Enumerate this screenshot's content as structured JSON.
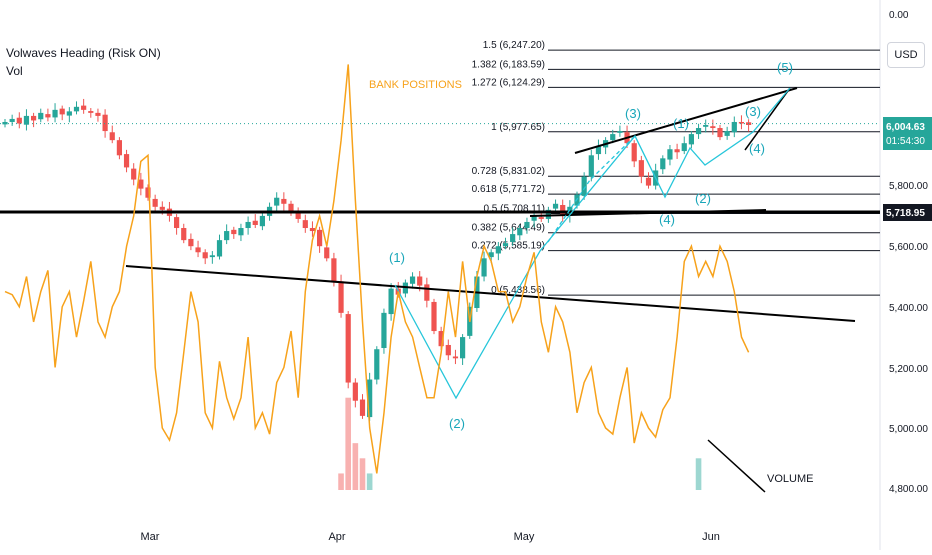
{
  "header": {
    "title": "Volwaves Heading (Risk ON)",
    "subtitle": "Vol",
    "currency": "USD"
  },
  "colors": {
    "up": "#26a69a",
    "down": "#ef5350",
    "bank": "#f7a21b",
    "wave": "#26c6da",
    "label": "#19a6b9"
  },
  "chart_data": {
    "type": "candlestick",
    "x_ticks": [
      "Mar",
      "Apr",
      "May",
      "Jun"
    ],
    "y_ticks": [
      "0.00",
      "5,800.00",
      "5,600.00",
      "5,400.00",
      "5,200.00",
      "5,000.00",
      "4,800.00"
    ],
    "price_labels": [
      {
        "text": "6,004.63",
        "sub": "01:54:30",
        "color": "#26a69a"
      },
      {
        "text": "5,718.95",
        "color": "#131722"
      }
    ],
    "fib_levels": [
      {
        "label": "1.5 (6,247.20)",
        "value": 6247.2
      },
      {
        "label": "1.382 (6,183.59)",
        "value": 6183.59
      },
      {
        "label": "1.272 (6,124.29)",
        "value": 6124.29
      },
      {
        "label": "1 (5,977.65)",
        "value": 5977.65
      },
      {
        "label": "0.728 (5,831.02)",
        "value": 5831.02
      },
      {
        "label": "0.618 (5,771.72)",
        "value": 5771.72
      },
      {
        "label": "0.5 (5,708.11)",
        "value": 5708.11
      },
      {
        "label": "0.382 (5,644.49)",
        "value": 5644.49
      },
      {
        "label": "0.272 (5,585.19)",
        "value": 5585.19
      },
      {
        "label": "0 (5,438.56)",
        "value": 5438.56
      }
    ],
    "annotations": [
      "BANK POSITIONS",
      "VOLUME"
    ],
    "wave_labels": [
      "(1)",
      "(2)",
      "(3)",
      "(1)",
      "(2)",
      "(4)",
      "(3)",
      "(4)",
      "(5)"
    ],
    "series": [
      {
        "name": "price",
        "values": [
          6010,
          6020,
          6005,
          6030,
          6015,
          6040,
          6025,
          6050,
          6035,
          6045,
          6060,
          6050,
          6040,
          6030,
          5980,
          5950,
          5900,
          5860,
          5820,
          5790,
          5760,
          5730,
          5720,
          5700,
          5660,
          5620,
          5600,
          5580,
          5560,
          5570,
          5620,
          5650,
          5640,
          5660,
          5680,
          5670,
          5700,
          5730,
          5760,
          5740,
          5710,
          5690,
          5660,
          5650,
          5600,
          5560,
          5480,
          5380,
          5150,
          5090,
          5040,
          5160,
          5260,
          5380,
          5460,
          5440,
          5480,
          5500,
          5470,
          5420,
          5320,
          5270,
          5240,
          5230,
          5300,
          5400,
          5500,
          5560,
          5580,
          5600,
          5610,
          5640,
          5660,
          5680,
          5700,
          5690,
          5720,
          5740,
          5700,
          5730,
          5770,
          5830,
          5900,
          5930,
          5950,
          5970,
          5980,
          5940,
          5880,
          5830,
          5800,
          5850,
          5890,
          5920,
          5910,
          5940,
          5970,
          5990,
          6000,
          5990,
          5960,
          5980,
          6010,
          6005,
          6000
        ]
      },
      {
        "name": "BANK POSITIONS",
        "values": [
          5.45,
          5.44,
          5.4,
          5.5,
          5.35,
          5.45,
          5.52,
          5.2,
          5.4,
          5.45,
          5.3,
          5.42,
          5.55,
          5.35,
          5.3,
          5.4,
          5.45,
          5.6,
          5.7,
          5.88,
          5.9,
          5.2,
          5.0,
          4.96,
          5.05,
          5.25,
          5.45,
          5.35,
          5.05,
          5.0,
          5.22,
          5.1,
          5.03,
          5.1,
          5.3,
          5.0,
          5.05,
          4.98,
          5.15,
          5.2,
          5.32,
          5.1,
          5.45,
          5.62,
          5.7,
          5.6,
          5.75,
          5.95,
          6.2,
          5.75,
          5.35,
          5.0,
          4.85,
          5.05,
          5.3,
          5.45,
          5.35,
          5.3,
          5.2,
          5.1,
          5.1,
          5.25,
          5.45,
          5.3,
          5.55,
          5.35,
          5.5,
          5.6,
          5.55,
          5.45,
          5.45,
          5.35,
          5.4,
          5.5,
          5.58,
          5.35,
          5.25,
          5.4,
          5.35,
          5.25,
          5.05,
          5.15,
          5.2,
          5.05,
          5.0,
          4.98,
          5.1,
          5.2,
          4.95,
          5.05,
          5.0,
          4.97,
          5.06,
          5.1,
          5.3,
          5.55,
          5.6,
          5.5,
          5.55,
          5.5,
          5.6,
          5.55,
          5.45,
          5.3,
          5.25
        ]
      },
      {
        "name": "VOLUME",
        "values": [
          4.55,
          4.45,
          4.5,
          4.4,
          4.55,
          4.45,
          4.5,
          4.4,
          4.55,
          4.45,
          4.5,
          4.4,
          4.55,
          4.45,
          4.45,
          4.6,
          4.5,
          4.55,
          4.45,
          4.5,
          4.6,
          4.55,
          4.5,
          4.45,
          4.55,
          4.6,
          4.5,
          4.45,
          4.55,
          4.6,
          4.5,
          4.45,
          4.5,
          4.55,
          4.45,
          4.5,
          4.55,
          4.6,
          4.5,
          4.45,
          4.55,
          4.6,
          4.5,
          4.45,
          4.55,
          4.6,
          4.7,
          4.85,
          5.1,
          4.95,
          4.9,
          4.85,
          4.6,
          4.55,
          4.6,
          4.65,
          4.6,
          4.5,
          4.55,
          4.6,
          4.55,
          4.5,
          4.55,
          4.6,
          4.55,
          4.5,
          4.45,
          4.55,
          4.6,
          4.5,
          4.45,
          4.55,
          4.6,
          4.5,
          4.55,
          4.6,
          4.5,
          4.45,
          4.55,
          4.5,
          4.6,
          4.55,
          4.5,
          4.45,
          4.55,
          4.5,
          4.45,
          4.5,
          4.6,
          4.55,
          4.5,
          4.55,
          4.6,
          4.5,
          4.45,
          4.55,
          4.5,
          4.9,
          4.55,
          4.6,
          4.5,
          4.45,
          4.5,
          4.45,
          4.4
        ]
      }
    ]
  }
}
